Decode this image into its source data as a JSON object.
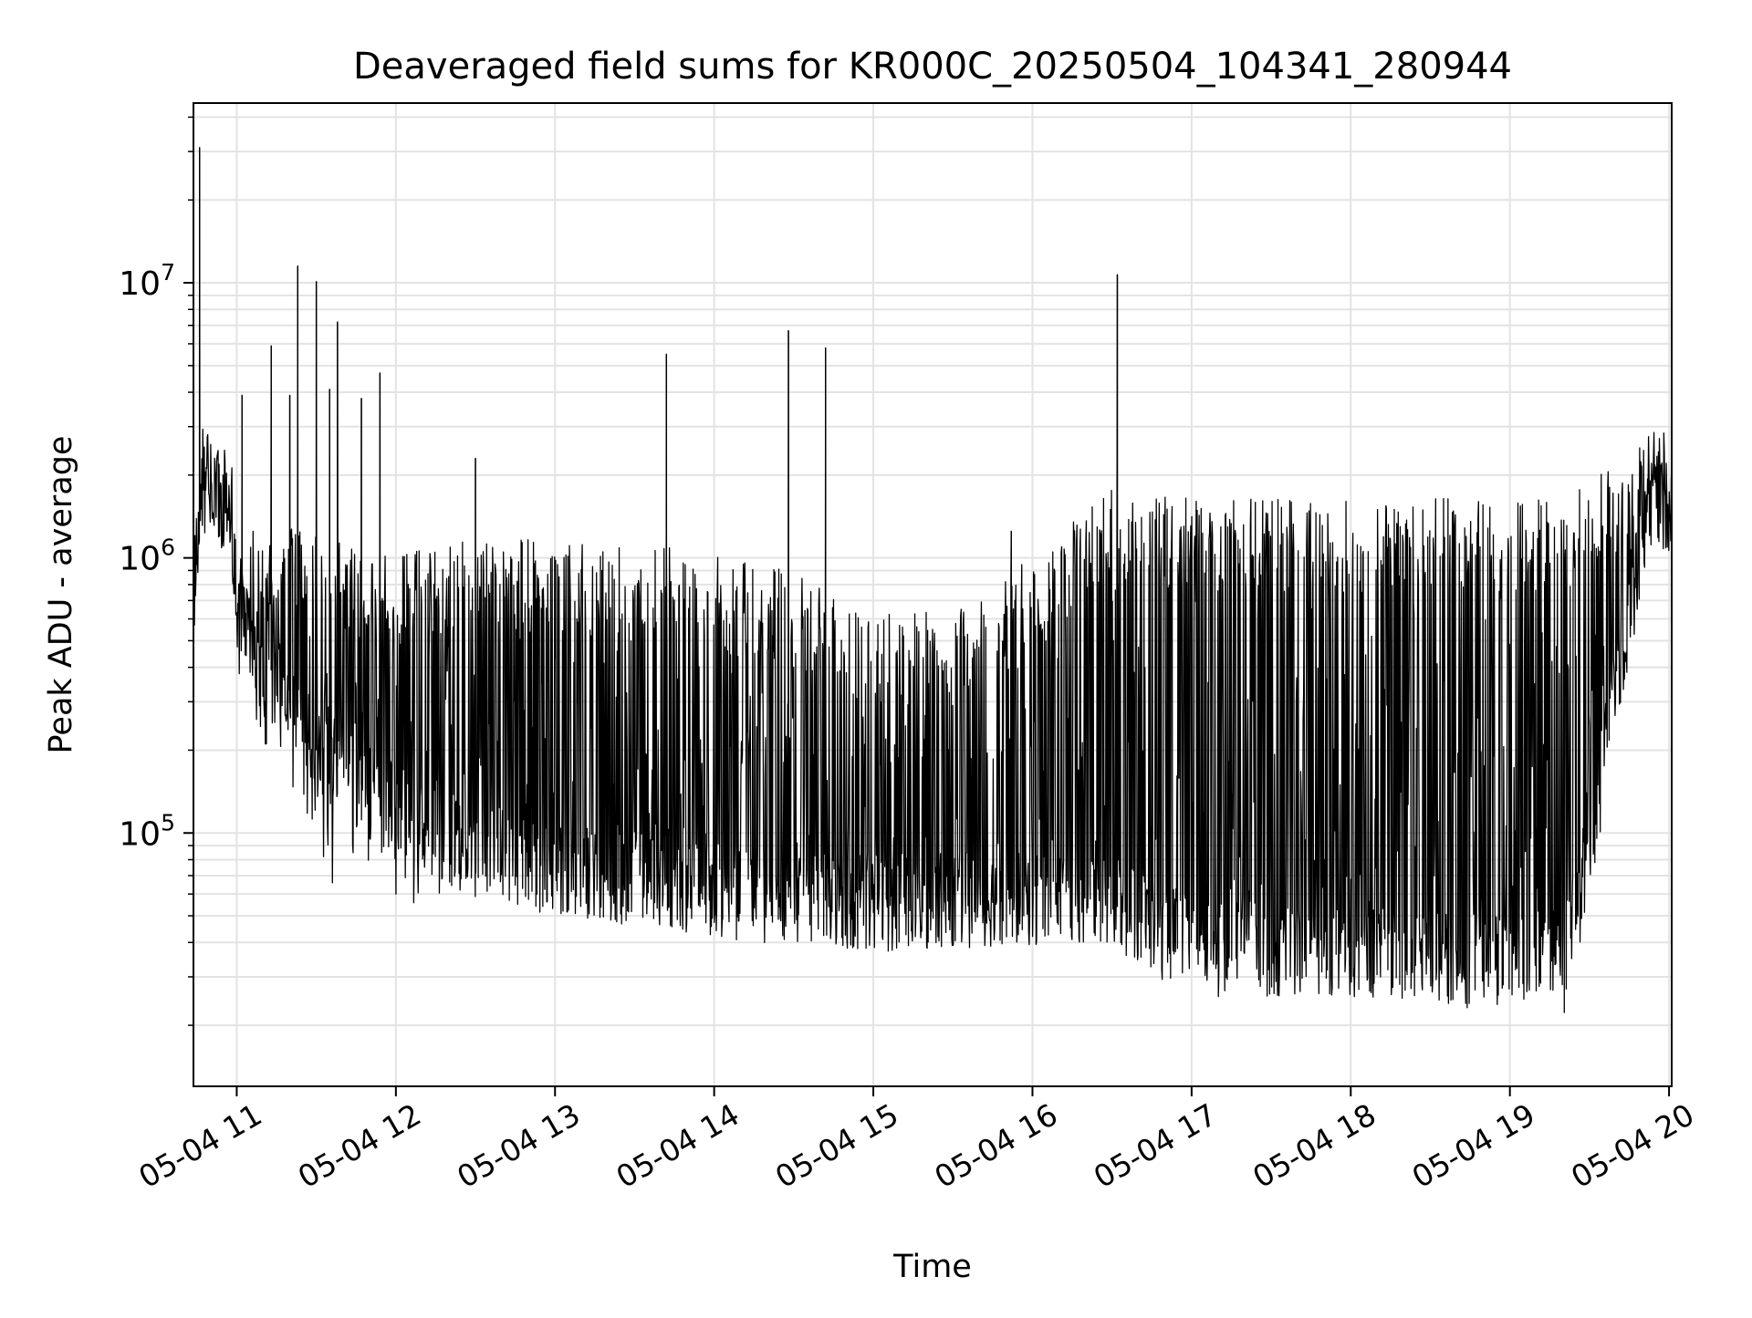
{
  "chart_data": {
    "type": "line",
    "title": "Deaveraged field sums for KR000C_20250504_104341_280944",
    "xlabel": "Time",
    "ylabel": "Peak ADU - average",
    "xlim": [
      "2025-05-04 10:43:41",
      "2025-05-04 20:01:00"
    ],
    "ylim": [
      12000,
      45000000
    ],
    "yscale": "log",
    "grid": true,
    "x_tick_labels": [
      "05-04 11",
      "05-04 12",
      "05-04 13",
      "05-04 14",
      "05-04 15",
      "05-04 16",
      "05-04 17",
      "05-04 18",
      "05-04 19",
      "05-04 20"
    ],
    "x_tick_times": [
      "2025-05-04 11:00",
      "2025-05-04 12:00",
      "2025-05-04 13:00",
      "2025-05-04 14:00",
      "2025-05-04 15:00",
      "2025-05-04 16:00",
      "2025-05-04 17:00",
      "2025-05-04 18:00",
      "2025-05-04 19:00",
      "2025-05-04 20:00"
    ],
    "y_ticks": [
      {
        "value": 100000,
        "base": "10",
        "exp": "5"
      },
      {
        "value": 1000000,
        "base": "10",
        "exp": "6"
      },
      {
        "value": 10000000,
        "base": "10",
        "exp": "7"
      }
    ],
    "series_color": "#000000",
    "envelope": {
      "time": [
        "2025-05-04 10:43:41",
        "2025-05-04 10:46:00",
        "2025-05-04 10:52:00",
        "2025-05-04 10:58:00",
        "2025-05-04 11:00:00",
        "2025-05-04 11:30:00",
        "2025-05-04 12:00:00",
        "2025-05-04 12:30:00",
        "2025-05-04 13:00:00",
        "2025-05-04 13:30:00",
        "2025-05-04 14:00:00",
        "2025-05-04 14:30:00",
        "2025-05-04 15:00:00",
        "2025-05-04 15:30:00",
        "2025-05-04 16:00:00",
        "2025-05-04 16:30:00",
        "2025-05-04 17:00:00",
        "2025-05-04 17:30:00",
        "2025-05-04 18:00:00",
        "2025-05-04 18:30:00",
        "2025-05-04 19:00:00",
        "2025-05-04 19:20:00",
        "2025-05-04 19:30:00",
        "2025-05-04 19:38:00",
        "2025-05-04 19:45:00",
        "2025-05-04 19:52:00",
        "2025-05-04 20:01:00"
      ],
      "baseline": [
        300000,
        1800000,
        1700000,
        1500000,
        650000,
        200000,
        120000,
        90000,
        75000,
        68000,
        62000,
        58000,
        55000,
        57000,
        58000,
        55000,
        40000,
        38000,
        37000,
        36000,
        35000,
        36000,
        80000,
        300000,
        600000,
        1500000,
        1600000
      ],
      "burst_top": [
        1000000,
        2500000,
        2300000,
        2000000,
        1000000,
        1000000,
        800000,
        1000000,
        900000,
        900000,
        800000,
        700000,
        500000,
        500000,
        800000,
        1400000,
        1300000,
        1300000,
        1300000,
        1300000,
        1300000,
        1300000,
        1500000,
        1900000,
        2000000,
        2500000,
        2200000
      ],
      "burst_bottom": [
        250000,
        1100000,
        1100000,
        1000000,
        400000,
        60000,
        55000,
        50000,
        50000,
        48000,
        42000,
        40000,
        40000,
        40000,
        45000,
        38000,
        25000,
        25000,
        24000,
        23000,
        23000,
        20000,
        50000,
        200000,
        450000,
        1050000,
        1100000
      ]
    },
    "spikes": [
      {
        "time": "2025-05-04 10:46:00",
        "value": 31000000
      },
      {
        "time": "2025-05-04 11:02:00",
        "value": 3900000
      },
      {
        "time": "2025-05-04 11:13:00",
        "value": 5900000
      },
      {
        "time": "2025-05-04 11:20:00",
        "value": 3900000
      },
      {
        "time": "2025-05-04 11:23:00",
        "value": 11500000
      },
      {
        "time": "2025-05-04 11:30:00",
        "value": 10100000
      },
      {
        "time": "2025-05-04 11:35:00",
        "value": 4100000
      },
      {
        "time": "2025-05-04 11:38:00",
        "value": 7200000
      },
      {
        "time": "2025-05-04 11:47:00",
        "value": 3800000
      },
      {
        "time": "2025-05-04 11:54:00",
        "value": 4700000
      },
      {
        "time": "2025-05-04 12:30:00",
        "value": 2300000
      },
      {
        "time": "2025-05-04 13:42:00",
        "value": 5500000
      },
      {
        "time": "2025-05-04 14:28:00",
        "value": 6700000
      },
      {
        "time": "2025-05-04 14:42:00",
        "value": 5800000
      },
      {
        "time": "2025-05-04 15:52:00",
        "value": 1250000
      },
      {
        "time": "2025-05-04 16:32:00",
        "value": 10700000
      },
      {
        "time": "2025-05-04 20:01:00",
        "value": 2900000
      }
    ]
  }
}
